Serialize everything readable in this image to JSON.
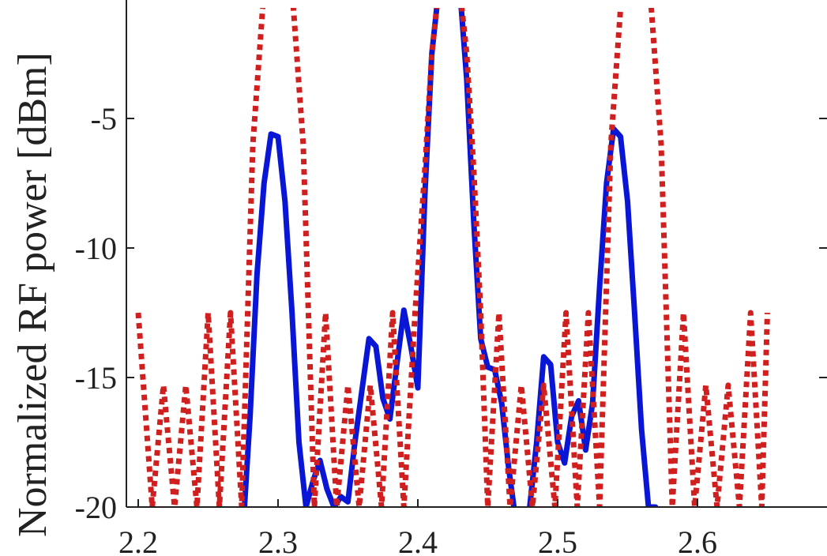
{
  "chart_data": {
    "type": "line",
    "title": "",
    "xlabel": "",
    "ylabel": "Normalized RF power [dBm]",
    "xlim": [
      2.2,
      2.65
    ],
    "ylim": [
      -20,
      0
    ],
    "x_ticks": [
      "2.2",
      "2.3",
      "2.4",
      "2.5",
      "2.6"
    ],
    "y_ticks": [
      "-5",
      "-10",
      "-15",
      "-20"
    ],
    "grid": false,
    "series": [
      {
        "style": "solid",
        "color": "#0a16d6",
        "x": [
          2.276,
          2.28,
          2.285,
          2.29,
          2.295,
          2.3,
          2.305,
          2.31,
          2.315,
          2.32,
          2.325,
          2.33,
          2.335,
          2.34,
          2.345,
          2.35,
          2.355,
          2.36,
          2.365,
          2.37,
          2.375,
          2.38,
          2.385,
          2.39,
          2.395,
          2.4,
          2.405,
          2.41,
          2.415,
          2.42,
          2.425,
          2.43,
          2.435,
          2.44,
          2.445,
          2.45,
          2.455,
          2.46,
          2.465,
          2.47,
          2.475,
          2.48,
          2.485,
          2.49,
          2.495,
          2.5,
          2.505,
          2.51,
          2.515,
          2.52,
          2.525,
          2.53,
          2.535,
          2.54,
          2.545,
          2.55,
          2.555,
          2.56,
          2.565,
          2.57
        ],
        "y": [
          -20,
          -16.5,
          -11,
          -7.5,
          -5.6,
          -5.7,
          -8.2,
          -12.5,
          -17.5,
          -20,
          -19,
          -18.2,
          -19.3,
          -20,
          -19.6,
          -19.8,
          -17.5,
          -15.5,
          -13.5,
          -13.8,
          -15.8,
          -16.6,
          -14.5,
          -12.4,
          -13.8,
          -15.4,
          -8,
          -2.5,
          0,
          1.5,
          1.5,
          0,
          -3.5,
          -9,
          -13.5,
          -14.6,
          -14.7,
          -16,
          -18.5,
          -20.5,
          -20.5,
          -20,
          -17.5,
          -14.2,
          -14.5,
          -17.5,
          -18.3,
          -16.5,
          -15.9,
          -17.8,
          -16,
          -11.5,
          -7.5,
          -5.4,
          -5.7,
          -8.2,
          -12.5,
          -17,
          -20,
          -20
        ]
      },
      {
        "style": "dotted",
        "color": "#d01f1f",
        "x": [
          2.2,
          2.21,
          2.218,
          2.226,
          2.234,
          2.242,
          2.25,
          2.258,
          2.266,
          2.274,
          2.282,
          2.29,
          2.3,
          2.31,
          2.318,
          2.326,
          2.334,
          2.342,
          2.35,
          2.358,
          2.366,
          2.374,
          2.382,
          2.39,
          2.398,
          2.405,
          2.41,
          2.415,
          2.42,
          2.425,
          2.43,
          2.435,
          2.44,
          2.445,
          2.45,
          2.458,
          2.466,
          2.474,
          2.482,
          2.49,
          2.498,
          2.506,
          2.514,
          2.522,
          2.53,
          2.538,
          2.546,
          2.556,
          2.566,
          2.574,
          2.582,
          2.59,
          2.598,
          2.606,
          2.614,
          2.622,
          2.63,
          2.638,
          2.646,
          2.65
        ],
        "y": [
          -12.5,
          -20,
          -15.3,
          -20,
          -15.3,
          -20,
          -12.5,
          -20,
          -12.5,
          -20,
          -6,
          0,
          2,
          0,
          -6,
          -20,
          -12.5,
          -20,
          -15.3,
          -20,
          -15.3,
          -20,
          -12.5,
          -20,
          -12.5,
          -7,
          -2.5,
          0,
          1.5,
          1.5,
          0,
          -2.5,
          -7,
          -12.5,
          -20,
          -12.5,
          -20,
          -15.3,
          -20,
          -15.3,
          -20,
          -12.5,
          -20,
          -12.5,
          -20,
          -6,
          0,
          2,
          0,
          -6,
          -20,
          -12.5,
          -20,
          -15.3,
          -20,
          -15.3,
          -20,
          -12.5,
          -20,
          -12.5
        ]
      }
    ]
  }
}
